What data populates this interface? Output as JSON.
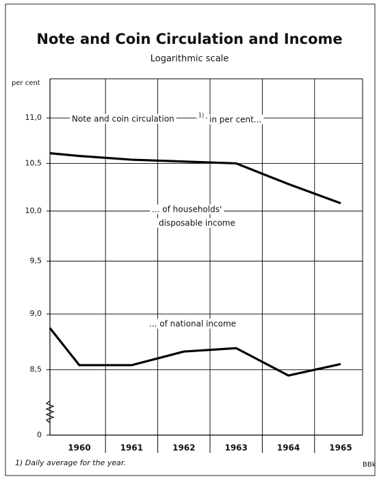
{
  "chart_data": {
    "type": "line",
    "title": "Note and Coin Circulation and Income",
    "subtitle": "Logarithmic scale",
    "y_label": "per cent",
    "log_scale": true,
    "grid": true,
    "categories": [
      null,
      "1960",
      "1961",
      "1962",
      "1963",
      "1964",
      "1965"
    ],
    "series": [
      {
        "color": "#000000",
        "values": [
          10.61,
          10.58,
          10.54,
          10.52,
          10.5,
          10.28,
          10.08
        ]
      },
      {
        "color": "#000000",
        "values": [
          8.87,
          8.54,
          8.54,
          8.66,
          8.69,
          8.45,
          8.55
        ]
      }
    ],
    "ylim": [
      7.95,
      11.45
    ],
    "yticks": [
      {
        "value": 11.0,
        "label": "11,0"
      },
      {
        "value": 10.5,
        "label": "10,5"
      },
      {
        "value": 10.0,
        "label": "10,0"
      },
      {
        "value": 9.5,
        "label": "9,5"
      },
      {
        "value": 9.0,
        "label": "9,0"
      },
      {
        "value": 8.5,
        "label": "8,5"
      },
      0
    ],
    "annotations": [
      "Note and coin circulation",
      "1)",
      "in per cent...",
      "... of households'",
      "disposable income",
      "... of national income"
    ],
    "footnote": "1) Daily average for the year.",
    "source": "BBk"
  }
}
